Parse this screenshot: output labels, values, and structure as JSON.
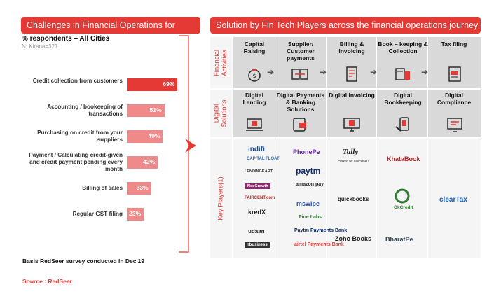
{
  "left_panel": {
    "header": "Challenges in Financial Operations for Kirana",
    "subtitle": "% respondents – All Cities",
    "sample": "N: Kirana=321",
    "basis": "Basis RedSeer survey conducted in Dec'19",
    "source": "Source : RedSeer"
  },
  "chart_data": {
    "type": "bar",
    "orientation": "horizontal",
    "categories": [
      "Credit collection from customers",
      "Accounting / bookeeping of transactions",
      "Purchasing on credit from your suppliers",
      "Payment / Calculating credit-given and credit payment pending every month",
      "Billing of sales",
      "Regular GST filing"
    ],
    "values": [
      69,
      51,
      49,
      42,
      33,
      23
    ],
    "value_labels": [
      "69%",
      "51%",
      "49%",
      "42%",
      "33%",
      "23%"
    ],
    "colors": [
      "#e53935",
      "#f08a8a",
      "#f08a8a",
      "#f08a8a",
      "#f08a8a",
      "#f08a8a"
    ],
    "xlim": [
      0,
      100
    ]
  },
  "right_panel": {
    "header": "Solution by Fin Tech Players across the financial operations journey",
    "rows": {
      "financial_activities": "Financial Activities",
      "digital_solutions": "Digital Solutions",
      "key_players": "Key Players(1)"
    },
    "activities": [
      "Capital Raising",
      "Supplier/ Customer payments",
      "Billing & Invoicing",
      "Book – keeping & Collection",
      "Tax filing"
    ],
    "solutions": [
      "Digital Lending",
      "Digital Payments & Banking Solutions",
      "Digital Invoicing",
      "Digital Bookkeeping",
      "Digital Compliance"
    ],
    "players": {
      "lending": [
        "indifi",
        "CAPITAL FLOAT",
        "LENDINGKART",
        "NeoGrowth",
        "FAIRCENT.com",
        "kredX",
        "udaan",
        "nbusiness"
      ],
      "payments": [
        "PhonePe",
        "paytm",
        "amazon pay",
        "mswipe",
        "Pine Labs",
        "Paytm Payments Bank",
        "airtel Payments Bank"
      ],
      "invoicing": [
        "Tally",
        "POWER OF SIMPLICITY",
        "quickbooks",
        "Zoho Books"
      ],
      "bookkeeping": [
        "KhataBook",
        "OkCredit",
        "BharatPe"
      ],
      "compliance": [
        "clearTax"
      ]
    },
    "colors": {
      "accent": "#e53935",
      "row_grey": "#d9d9d9",
      "row_light": "#f2f2f2"
    }
  }
}
